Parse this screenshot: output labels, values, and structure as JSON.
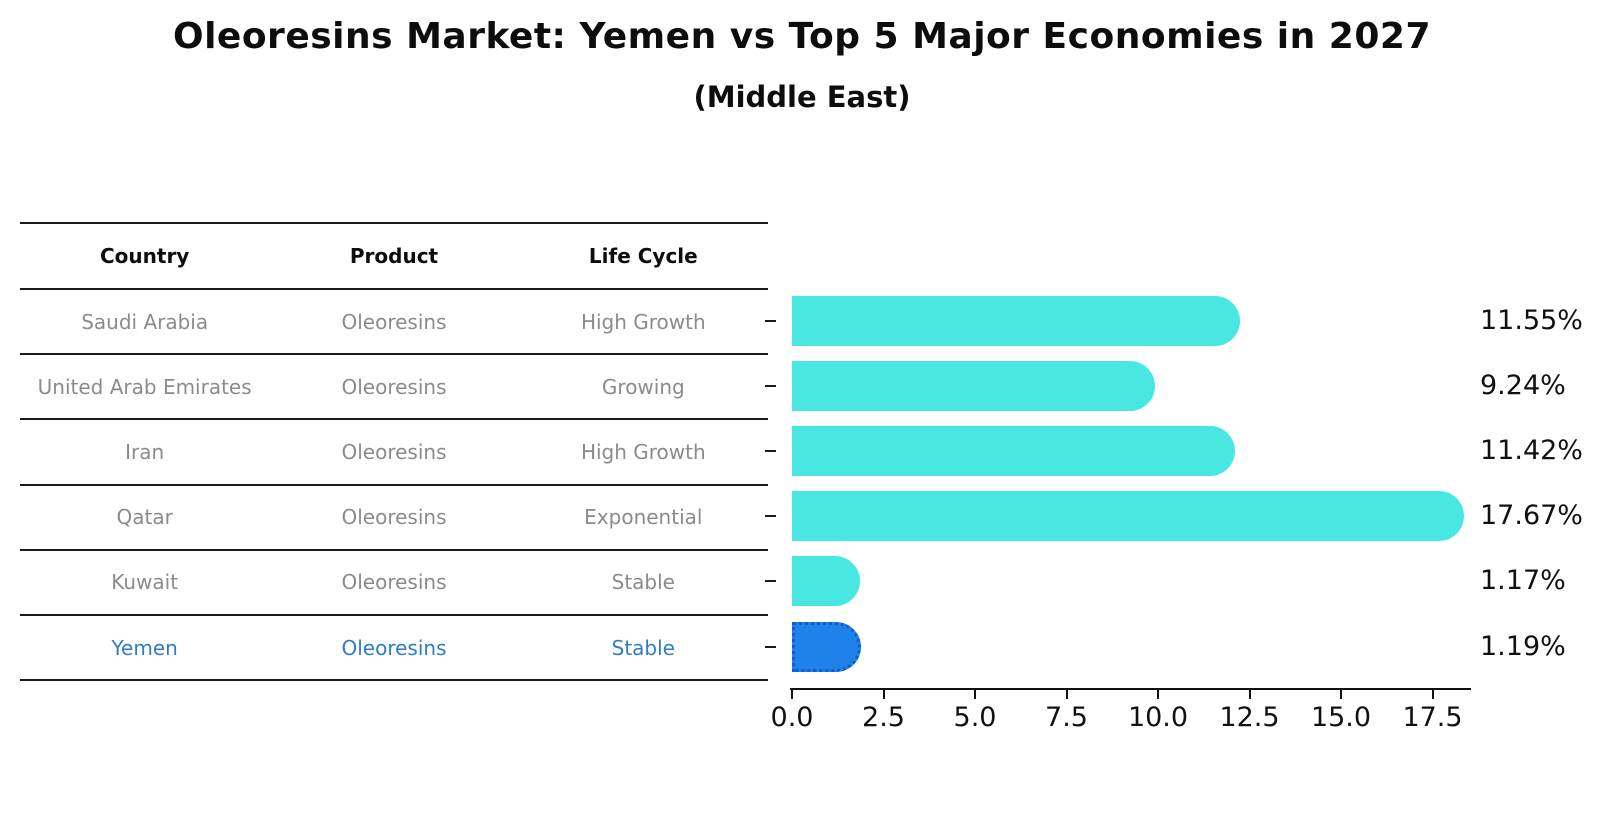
{
  "title": "Oleoresins Market: Yemen vs Top 5 Major Economies in 2027",
  "subtitle": "(Middle East)",
  "table": {
    "headers": [
      "Country",
      "Product",
      "Life Cycle"
    ],
    "rows": [
      {
        "country": "Saudi Arabia",
        "product": "Oleoresins",
        "life_cycle": "High Growth",
        "highlight": false
      },
      {
        "country": "United Arab Emirates",
        "product": "Oleoresins",
        "life_cycle": "Growing",
        "highlight": false
      },
      {
        "country": "Iran",
        "product": "Oleoresins",
        "life_cycle": "High Growth",
        "highlight": false
      },
      {
        "country": "Qatar",
        "product": "Oleoresins",
        "life_cycle": "Exponential",
        "highlight": false
      },
      {
        "country": "Kuwait",
        "product": "Oleoresins",
        "life_cycle": "Stable",
        "highlight": false
      },
      {
        "country": "Yemen",
        "product": "Oleoresins",
        "life_cycle": "Stable",
        "highlight": true
      }
    ]
  },
  "chart_data": {
    "type": "bar",
    "orientation": "horizontal",
    "title": "Oleoresins Market: Yemen vs Top 5 Major Economies in 2027",
    "subtitle": "(Middle East)",
    "categories": [
      "Saudi Arabia",
      "United Arab Emirates",
      "Iran",
      "Qatar",
      "Kuwait",
      "Yemen"
    ],
    "values": [
      11.55,
      9.24,
      11.42,
      17.67,
      1.17,
      1.19
    ],
    "value_labels": [
      "11.55%",
      "9.24%",
      "11.42%",
      "17.67%",
      "1.17%",
      "1.19%"
    ],
    "x_ticks": [
      "0.0",
      "2.5",
      "5.0",
      "7.5",
      "10.0",
      "12.5",
      "15.0",
      "17.5"
    ],
    "xlim": [
      0,
      18.6
    ],
    "grid": false,
    "legend": "none",
    "bar_color": "#48E7E2",
    "highlight": {
      "index": 5,
      "category": "Yemen",
      "color": "#1E82EA",
      "outline": "dotted"
    }
  },
  "colors": {
    "background": "#ffffff",
    "bar_cyan": "#48E7E2",
    "bar_blue": "#1E82EA",
    "highlight_text_blue": "#2f7dc6",
    "table_text_gray": "#8b8b8b",
    "text_black": "#111111"
  }
}
